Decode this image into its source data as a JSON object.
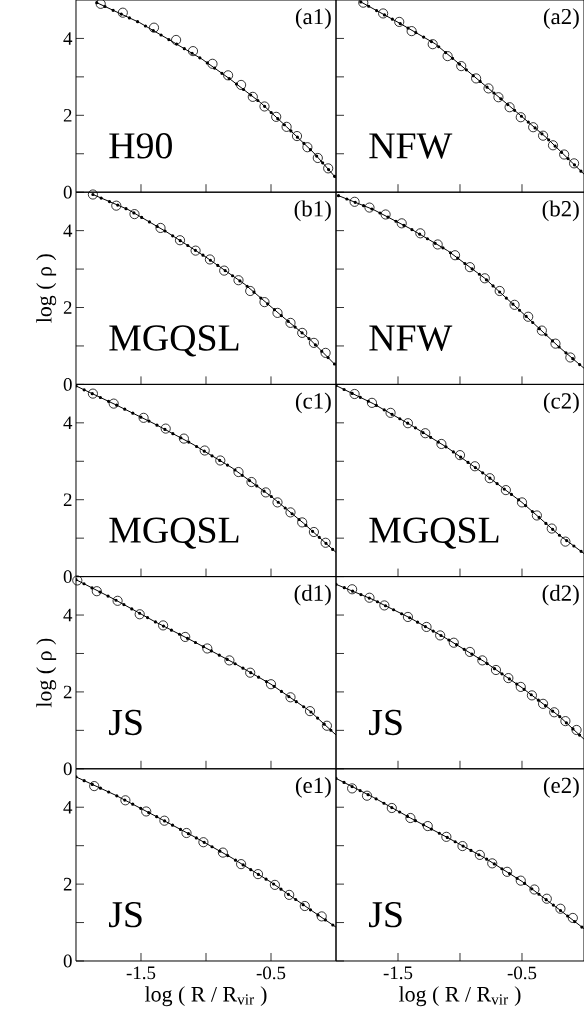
{
  "chart_data": [
    {
      "type": "line",
      "annotations": [
        "(a1)",
        "H90"
      ],
      "xlim": [
        -2,
        0
      ],
      "ylim": [
        0,
        5
      ],
      "tick_labels": "y",
      "xticks": [
        {
          "value": -1.5,
          "label": null
        },
        {
          "value": -1,
          "label": null
        },
        {
          "value": -0.5,
          "label": null
        }
      ],
      "yticks": [
        0,
        {
          "value": 1,
          "label": null
        },
        2,
        {
          "value": 3,
          "label": null
        },
        4
      ],
      "series": [
        {
          "type": "scatter",
          "marker": "circle",
          "color": "#000000",
          "x": [
            -1.81,
            -1.64,
            -1.4,
            -1.23,
            -1.1,
            -0.95,
            -0.83,
            -0.73,
            -0.64,
            -0.55,
            -0.46,
            -0.38,
            -0.3,
            -0.22,
            -0.14,
            -0.06
          ],
          "values": [
            4.9,
            4.67,
            4.28,
            3.96,
            3.67,
            3.34,
            3.04,
            2.79,
            2.48,
            2.23,
            1.96,
            1.7,
            1.46,
            1.17,
            0.89,
            0.62
          ]
        },
        {
          "type": "line",
          "color": "#000000",
          "x": [
            -1.84,
            -1.51,
            -1.28,
            -1.03,
            -0.81,
            -0.58,
            -0.38,
            -0.17,
            0
          ],
          "values": [
            4.93,
            4.41,
            3.96,
            3.46,
            2.93,
            2.33,
            1.7,
            1.02,
            0.37
          ]
        },
        {
          "type": "line",
          "line_style": "dotted",
          "color": "#000000",
          "x": [
            -1.84,
            -1.51,
            -1.28,
            -1.03,
            -0.81,
            -0.58,
            -0.38,
            -0.17,
            0
          ],
          "values": [
            4.93,
            4.41,
            3.96,
            3.46,
            2.93,
            2.33,
            1.7,
            1.02,
            0.37
          ]
        }
      ]
    },
    {
      "type": "line",
      "annotations": [
        "(a2)",
        "NFW"
      ],
      "xlim": [
        -2,
        0
      ],
      "ylim": [
        0,
        5
      ],
      "tick_labels": false,
      "xticks": [
        {
          "value": -1.5,
          "label": null
        },
        {
          "value": -1,
          "label": null
        },
        {
          "value": -0.5,
          "label": null
        }
      ],
      "yticks": [
        {
          "value": 0,
          "label": null
        },
        {
          "value": 1,
          "label": null
        },
        {
          "value": 2,
          "label": null
        },
        {
          "value": 3,
          "label": null
        },
        {
          "value": 4,
          "label": null
        }
      ],
      "series": [
        {
          "type": "scatter",
          "marker": "circle",
          "color": "#000000",
          "x": [
            -1.78,
            -1.62,
            -1.49,
            -1.39,
            -1.22,
            -1.1,
            -0.99,
            -0.87,
            -0.77,
            -0.69,
            -0.6,
            -0.51,
            -0.41,
            -0.33,
            -0.25,
            -0.16,
            -0.08
          ],
          "values": [
            4.93,
            4.65,
            4.43,
            4.19,
            3.85,
            3.54,
            3.28,
            2.96,
            2.7,
            2.47,
            2.21,
            1.95,
            1.69,
            1.47,
            1.22,
            0.98,
            0.75
          ]
        },
        {
          "type": "line",
          "color": "#000000",
          "x": [
            -1.8,
            -1.5,
            -1.2,
            -0.9,
            -0.6,
            -0.3,
            0
          ],
          "values": [
            4.95,
            4.42,
            3.86,
            3.05,
            2.24,
            1.41,
            0.47
          ]
        },
        {
          "type": "line",
          "line_style": "dotted",
          "color": "#000000",
          "x": [
            -1.8,
            -1.5,
            -1.2,
            -0.9,
            -0.6,
            -0.3,
            0
          ],
          "values": [
            4.95,
            4.42,
            3.86,
            3.05,
            2.24,
            1.41,
            0.47
          ]
        }
      ]
    },
    {
      "type": "line",
      "annotations": [
        "(b1)",
        "MGQSL"
      ],
      "ylabel": "log ( ρ )",
      "xlim": [
        -2,
        0
      ],
      "ylim": [
        0,
        5
      ],
      "tick_labels": "y",
      "xticks": [
        {
          "value": -1.5,
          "label": null
        },
        {
          "value": -1,
          "label": null
        },
        {
          "value": -0.5,
          "label": null
        }
      ],
      "yticks": [
        0,
        {
          "value": 1,
          "label": null
        },
        2,
        {
          "value": 3,
          "label": null
        },
        4
      ],
      "series": [
        {
          "type": "scatter",
          "marker": "circle",
          "color": "#000000",
          "x": [
            -1.87,
            -1.69,
            -1.55,
            -1.35,
            -1.2,
            -1.08,
            -0.97,
            -0.86,
            -0.75,
            -0.66,
            -0.55,
            -0.45,
            -0.35,
            -0.26,
            -0.17,
            -0.08
          ],
          "values": [
            4.94,
            4.65,
            4.43,
            4.07,
            3.75,
            3.48,
            3.25,
            2.96,
            2.71,
            2.43,
            2.14,
            1.86,
            1.6,
            1.34,
            1.08,
            0.82
          ]
        },
        {
          "type": "line",
          "color": "#000000",
          "x": [
            -1.87,
            -1.6,
            -1.3,
            -1.0,
            -0.7,
            -0.4,
            -0.2,
            0
          ],
          "values": [
            4.94,
            4.55,
            3.96,
            3.31,
            2.6,
            1.73,
            1.17,
            0.49
          ]
        },
        {
          "type": "line",
          "line_style": "dotted",
          "color": "#000000",
          "x": [
            -1.87,
            -1.6,
            -1.3,
            -1.0,
            -0.7,
            -0.4,
            -0.2,
            0
          ],
          "values": [
            4.94,
            4.55,
            3.96,
            3.31,
            2.6,
            1.73,
            1.17,
            0.49
          ]
        }
      ]
    },
    {
      "type": "line",
      "annotations": [
        "(b2)",
        "NFW"
      ],
      "xlim": [
        -2,
        0
      ],
      "ylim": [
        0,
        5
      ],
      "tick_labels": false,
      "xticks": [
        {
          "value": -1.5,
          "label": null
        },
        {
          "value": -1,
          "label": null
        },
        {
          "value": -0.5,
          "label": null
        }
      ],
      "yticks": [
        {
          "value": 0,
          "label": null
        },
        {
          "value": 1,
          "label": null
        },
        {
          "value": 2,
          "label": null
        },
        {
          "value": 3,
          "label": null
        },
        {
          "value": 4,
          "label": null
        }
      ],
      "series": [
        {
          "type": "scatter",
          "marker": "circle",
          "color": "#000000",
          "x": [
            -1.85,
            -1.73,
            -1.6,
            -1.47,
            -1.32,
            -1.18,
            -1.04,
            -0.92,
            -0.8,
            -0.68,
            -0.56,
            -0.45,
            -0.34,
            -0.23,
            -0.11
          ],
          "values": [
            4.75,
            4.6,
            4.42,
            4.19,
            3.93,
            3.64,
            3.36,
            3.05,
            2.76,
            2.43,
            2.07,
            1.76,
            1.4,
            1.06,
            0.7
          ]
        },
        {
          "type": "line",
          "color": "#000000",
          "x": [
            -1.98,
            -1.7,
            -1.4,
            -1.1,
            -0.8,
            -0.5,
            -0.2,
            0
          ],
          "values": [
            4.91,
            4.55,
            4.05,
            3.48,
            2.76,
            1.87,
            0.97,
            0.42
          ]
        },
        {
          "type": "line",
          "line_style": "dotted",
          "color": "#000000",
          "x": [
            -1.98,
            -1.7,
            -1.4,
            -1.1,
            -0.8,
            -0.5,
            -0.2,
            0
          ],
          "values": [
            4.91,
            4.55,
            4.05,
            3.48,
            2.76,
            1.87,
            0.97,
            0.42
          ]
        }
      ]
    },
    {
      "type": "line",
      "annotations": [
        "(c1)",
        "MGQSL"
      ],
      "xlim": [
        -2,
        0
      ],
      "ylim": [
        0,
        5
      ],
      "tick_labels": "y",
      "xticks": [
        {
          "value": -1.5,
          "label": null
        },
        {
          "value": -1,
          "label": null
        },
        {
          "value": -0.5,
          "label": null
        }
      ],
      "yticks": [
        0,
        {
          "value": 1,
          "label": null
        },
        2,
        {
          "value": 3,
          "label": null
        },
        4
      ],
      "series": [
        {
          "type": "scatter",
          "marker": "circle",
          "color": "#000000",
          "x": [
            -1.87,
            -1.71,
            -1.48,
            -1.31,
            -1.17,
            -1.01,
            -0.89,
            -0.75,
            -0.65,
            -0.54,
            -0.45,
            -0.35,
            -0.26,
            -0.17,
            -0.08
          ],
          "values": [
            4.76,
            4.5,
            4.13,
            3.85,
            3.59,
            3.28,
            3.02,
            2.72,
            2.46,
            2.19,
            1.93,
            1.67,
            1.41,
            1.16,
            0.88
          ]
        },
        {
          "type": "line",
          "color": "#000000",
          "x": [
            -2,
            -1.7,
            -1.4,
            -1.1,
            -0.8,
            -0.5,
            -0.25,
            0
          ],
          "values": [
            4.96,
            4.48,
            3.98,
            3.44,
            2.83,
            2.09,
            1.39,
            0.63
          ]
        },
        {
          "type": "line",
          "line_style": "dotted",
          "color": "#000000",
          "x": [
            -2,
            -1.7,
            -1.4,
            -1.1,
            -0.8,
            -0.5,
            -0.25,
            0
          ],
          "values": [
            4.96,
            4.48,
            3.98,
            3.44,
            2.83,
            2.09,
            1.39,
            0.63
          ]
        }
      ]
    },
    {
      "type": "line",
      "annotations": [
        "(c2)",
        "MGQSL"
      ],
      "xlim": [
        -2,
        0
      ],
      "ylim": [
        0,
        5
      ],
      "tick_labels": false,
      "xticks": [
        {
          "value": -1.5,
          "label": null
        },
        {
          "value": -1,
          "label": null
        },
        {
          "value": -0.5,
          "label": null
        }
      ],
      "yticks": [
        {
          "value": 0,
          "label": null
        },
        {
          "value": 1,
          "label": null
        },
        {
          "value": 2,
          "label": null
        },
        {
          "value": 3,
          "label": null
        },
        {
          "value": 4,
          "label": null
        }
      ],
      "series": [
        {
          "type": "scatter",
          "marker": "circle",
          "color": "#000000",
          "x": [
            -1.85,
            -1.71,
            -1.56,
            -1.42,
            -1.28,
            -1.15,
            -1.0,
            -0.88,
            -0.76,
            -0.63,
            -0.5,
            -0.38,
            -0.26,
            -0.15
          ],
          "values": [
            4.75,
            4.52,
            4.26,
            3.99,
            3.73,
            3.45,
            3.16,
            2.87,
            2.56,
            2.25,
            1.93,
            1.59,
            1.25,
            0.91
          ]
        },
        {
          "type": "line",
          "color": "#000000",
          "x": [
            -2,
            -1.7,
            -1.4,
            -1.1,
            -0.8,
            -0.5,
            -0.2,
            0
          ],
          "values": [
            4.97,
            4.5,
            3.95,
            3.35,
            2.66,
            1.93,
            1.08,
            0.6
          ]
        },
        {
          "type": "line",
          "line_style": "dotted",
          "color": "#000000",
          "x": [
            -2,
            -1.7,
            -1.4,
            -1.1,
            -0.8,
            -0.5,
            -0.2,
            0
          ],
          "values": [
            4.97,
            4.5,
            3.95,
            3.35,
            2.66,
            1.93,
            1.08,
            0.6
          ]
        }
      ]
    },
    {
      "type": "line",
      "annotations": [
        "(d1)",
        "JS"
      ],
      "ylabel": "log ( ρ )",
      "xlim": [
        -2,
        0
      ],
      "ylim": [
        0,
        5
      ],
      "tick_labels": "y",
      "xticks": [
        {
          "value": -1.5,
          "label": null
        },
        {
          "value": -1,
          "label": null
        },
        {
          "value": -0.5,
          "label": null
        }
      ],
      "yticks": [
        0,
        {
          "value": 1,
          "label": null
        },
        2,
        {
          "value": 3,
          "label": null
        },
        4
      ],
      "series": [
        {
          "type": "scatter",
          "marker": "circle",
          "color": "#000000",
          "x": [
            -1.99,
            -1.84,
            -1.68,
            -1.51,
            -1.33,
            -1.16,
            -0.99,
            -0.82,
            -0.66,
            -0.5,
            -0.35,
            -0.2,
            -0.07
          ],
          "values": [
            4.9,
            4.62,
            4.37,
            4.02,
            3.73,
            3.43,
            3.13,
            2.82,
            2.5,
            2.2,
            1.86,
            1.5,
            1.12
          ]
        },
        {
          "type": "line",
          "color": "#000000",
          "x": [
            -2,
            -1.7,
            -1.4,
            -1.1,
            -0.8,
            -0.5,
            -0.2,
            0
          ],
          "values": [
            4.92,
            4.4,
            3.84,
            3.32,
            2.78,
            2.2,
            1.5,
            0.88
          ]
        },
        {
          "type": "line",
          "line_style": "dotted",
          "color": "#000000",
          "x": [
            -2,
            -1.7,
            -1.4,
            -1.1,
            -0.8,
            -0.5,
            -0.2,
            0
          ],
          "values": [
            4.92,
            4.4,
            3.84,
            3.32,
            2.78,
            2.2,
            1.5,
            0.88
          ]
        }
      ]
    },
    {
      "type": "line",
      "annotations": [
        "(d2)",
        "JS"
      ],
      "xlim": [
        -2,
        0
      ],
      "ylim": [
        0,
        5
      ],
      "tick_labels": false,
      "xticks": [
        {
          "value": -1.5,
          "label": null
        },
        {
          "value": -1,
          "label": null
        },
        {
          "value": -0.5,
          "label": null
        }
      ],
      "yticks": [
        {
          "value": 0,
          "label": null
        },
        {
          "value": 1,
          "label": null
        },
        {
          "value": 2,
          "label": null
        },
        {
          "value": 3,
          "label": null
        },
        {
          "value": 4,
          "label": null
        }
      ],
      "series": [
        {
          "type": "scatter",
          "marker": "circle",
          "color": "#000000",
          "x": [
            -1.87,
            -1.73,
            -1.61,
            -1.42,
            -1.27,
            -1.16,
            -1.05,
            -0.92,
            -0.82,
            -0.71,
            -0.61,
            -0.51,
            -0.42,
            -0.33,
            -0.24,
            -0.15,
            -0.06
          ],
          "values": [
            4.67,
            4.45,
            4.25,
            3.95,
            3.69,
            3.47,
            3.28,
            3.04,
            2.82,
            2.57,
            2.36,
            2.13,
            1.91,
            1.69,
            1.47,
            1.24,
            1.01
          ]
        },
        {
          "type": "line",
          "color": "#000000",
          "x": [
            -2,
            -1.7,
            -1.4,
            -1.1,
            -0.8,
            -0.5,
            -0.2,
            0
          ],
          "values": [
            4.8,
            4.4,
            3.92,
            3.37,
            2.78,
            2.11,
            1.37,
            0.77
          ]
        },
        {
          "type": "line",
          "line_style": "dotted",
          "color": "#000000",
          "x": [
            -2,
            -1.7,
            -1.4,
            -1.1,
            -0.8,
            -0.5,
            -0.2,
            0
          ],
          "values": [
            4.8,
            4.4,
            3.92,
            3.37,
            2.78,
            2.11,
            1.37,
            0.77
          ]
        }
      ]
    },
    {
      "type": "line",
      "annotations": [
        "(e1)",
        "JS"
      ],
      "xlabel": "log ( R / R$_{vir}$ )",
      "xlim": [
        -2,
        0
      ],
      "ylim": [
        0,
        5
      ],
      "xticks": [
        {
          "value": -1.5,
          "label": "-1.5"
        },
        {
          "value": -1,
          "label": null
        },
        {
          "value": -0.5,
          "label": "-0.5"
        }
      ],
      "yticks": [
        0,
        {
          "value": 1,
          "label": null
        },
        2,
        {
          "value": 3,
          "label": null
        },
        4
      ],
      "series": [
        {
          "type": "scatter",
          "marker": "circle",
          "color": "#000000",
          "x": [
            -1.86,
            -1.62,
            -1.46,
            -1.32,
            -1.15,
            -1.02,
            -0.87,
            -0.73,
            -0.6,
            -0.47,
            -0.36,
            -0.24,
            -0.11
          ],
          "values": [
            4.55,
            4.18,
            3.89,
            3.65,
            3.33,
            3.09,
            2.82,
            2.52,
            2.26,
            1.98,
            1.72,
            1.43,
            1.16
          ]
        },
        {
          "type": "line",
          "color": "#000000",
          "x": [
            -2,
            -1.7,
            -1.4,
            -1.1,
            -0.8,
            -0.5,
            -0.2,
            0
          ],
          "values": [
            4.79,
            4.32,
            3.79,
            3.25,
            2.68,
            2.05,
            1.34,
            0.88
          ]
        },
        {
          "type": "line",
          "line_style": "dotted",
          "color": "#000000",
          "x": [
            -2,
            -1.7,
            -1.4,
            -1.1,
            -0.8,
            -0.5,
            -0.2,
            0
          ],
          "values": [
            4.79,
            4.32,
            3.79,
            3.25,
            2.68,
            2.05,
            1.34,
            0.88
          ]
        }
      ]
    },
    {
      "type": "line",
      "annotations": [
        "(e2)",
        "JS"
      ],
      "xlabel": "log ( R / R$_{vir}$ )",
      "xlim": [
        -2,
        0
      ],
      "ylim": [
        0,
        5
      ],
      "tick_labels": "x",
      "xticks": [
        {
          "value": -1.5,
          "label": "-1.5"
        },
        {
          "value": -1,
          "label": null
        },
        {
          "value": -0.5,
          "label": "-0.5"
        }
      ],
      "yticks": [
        {
          "value": 0,
          "label": null
        },
        {
          "value": 1,
          "label": null
        },
        {
          "value": 2,
          "label": null
        },
        {
          "value": 3,
          "label": null
        },
        {
          "value": 4,
          "label": null
        }
      ],
      "series": [
        {
          "type": "scatter",
          "marker": "circle",
          "color": "#000000",
          "x": [
            -1.87,
            -1.75,
            -1.55,
            -1.4,
            -1.26,
            -1.11,
            -0.98,
            -0.84,
            -0.74,
            -0.62,
            -0.51,
            -0.4,
            -0.3,
            -0.19,
            -0.09
          ],
          "values": [
            4.49,
            4.3,
            3.98,
            3.72,
            3.51,
            3.23,
            2.99,
            2.76,
            2.54,
            2.32,
            2.09,
            1.86,
            1.62,
            1.36,
            1.12
          ]
        },
        {
          "type": "line",
          "color": "#000000",
          "x": [
            -2,
            -1.7,
            -1.4,
            -1.1,
            -0.8,
            -0.5,
            -0.2,
            0
          ],
          "values": [
            4.75,
            4.26,
            3.72,
            3.21,
            2.68,
            2.07,
            1.34,
            0.84
          ]
        },
        {
          "type": "line",
          "line_style": "dotted",
          "color": "#000000",
          "x": [
            -2,
            -1.7,
            -1.4,
            -1.1,
            -0.8,
            -0.5,
            -0.2,
            0
          ],
          "values": [
            4.75,
            4.26,
            3.72,
            3.21,
            2.68,
            2.07,
            1.34,
            0.84
          ]
        }
      ]
    }
  ]
}
